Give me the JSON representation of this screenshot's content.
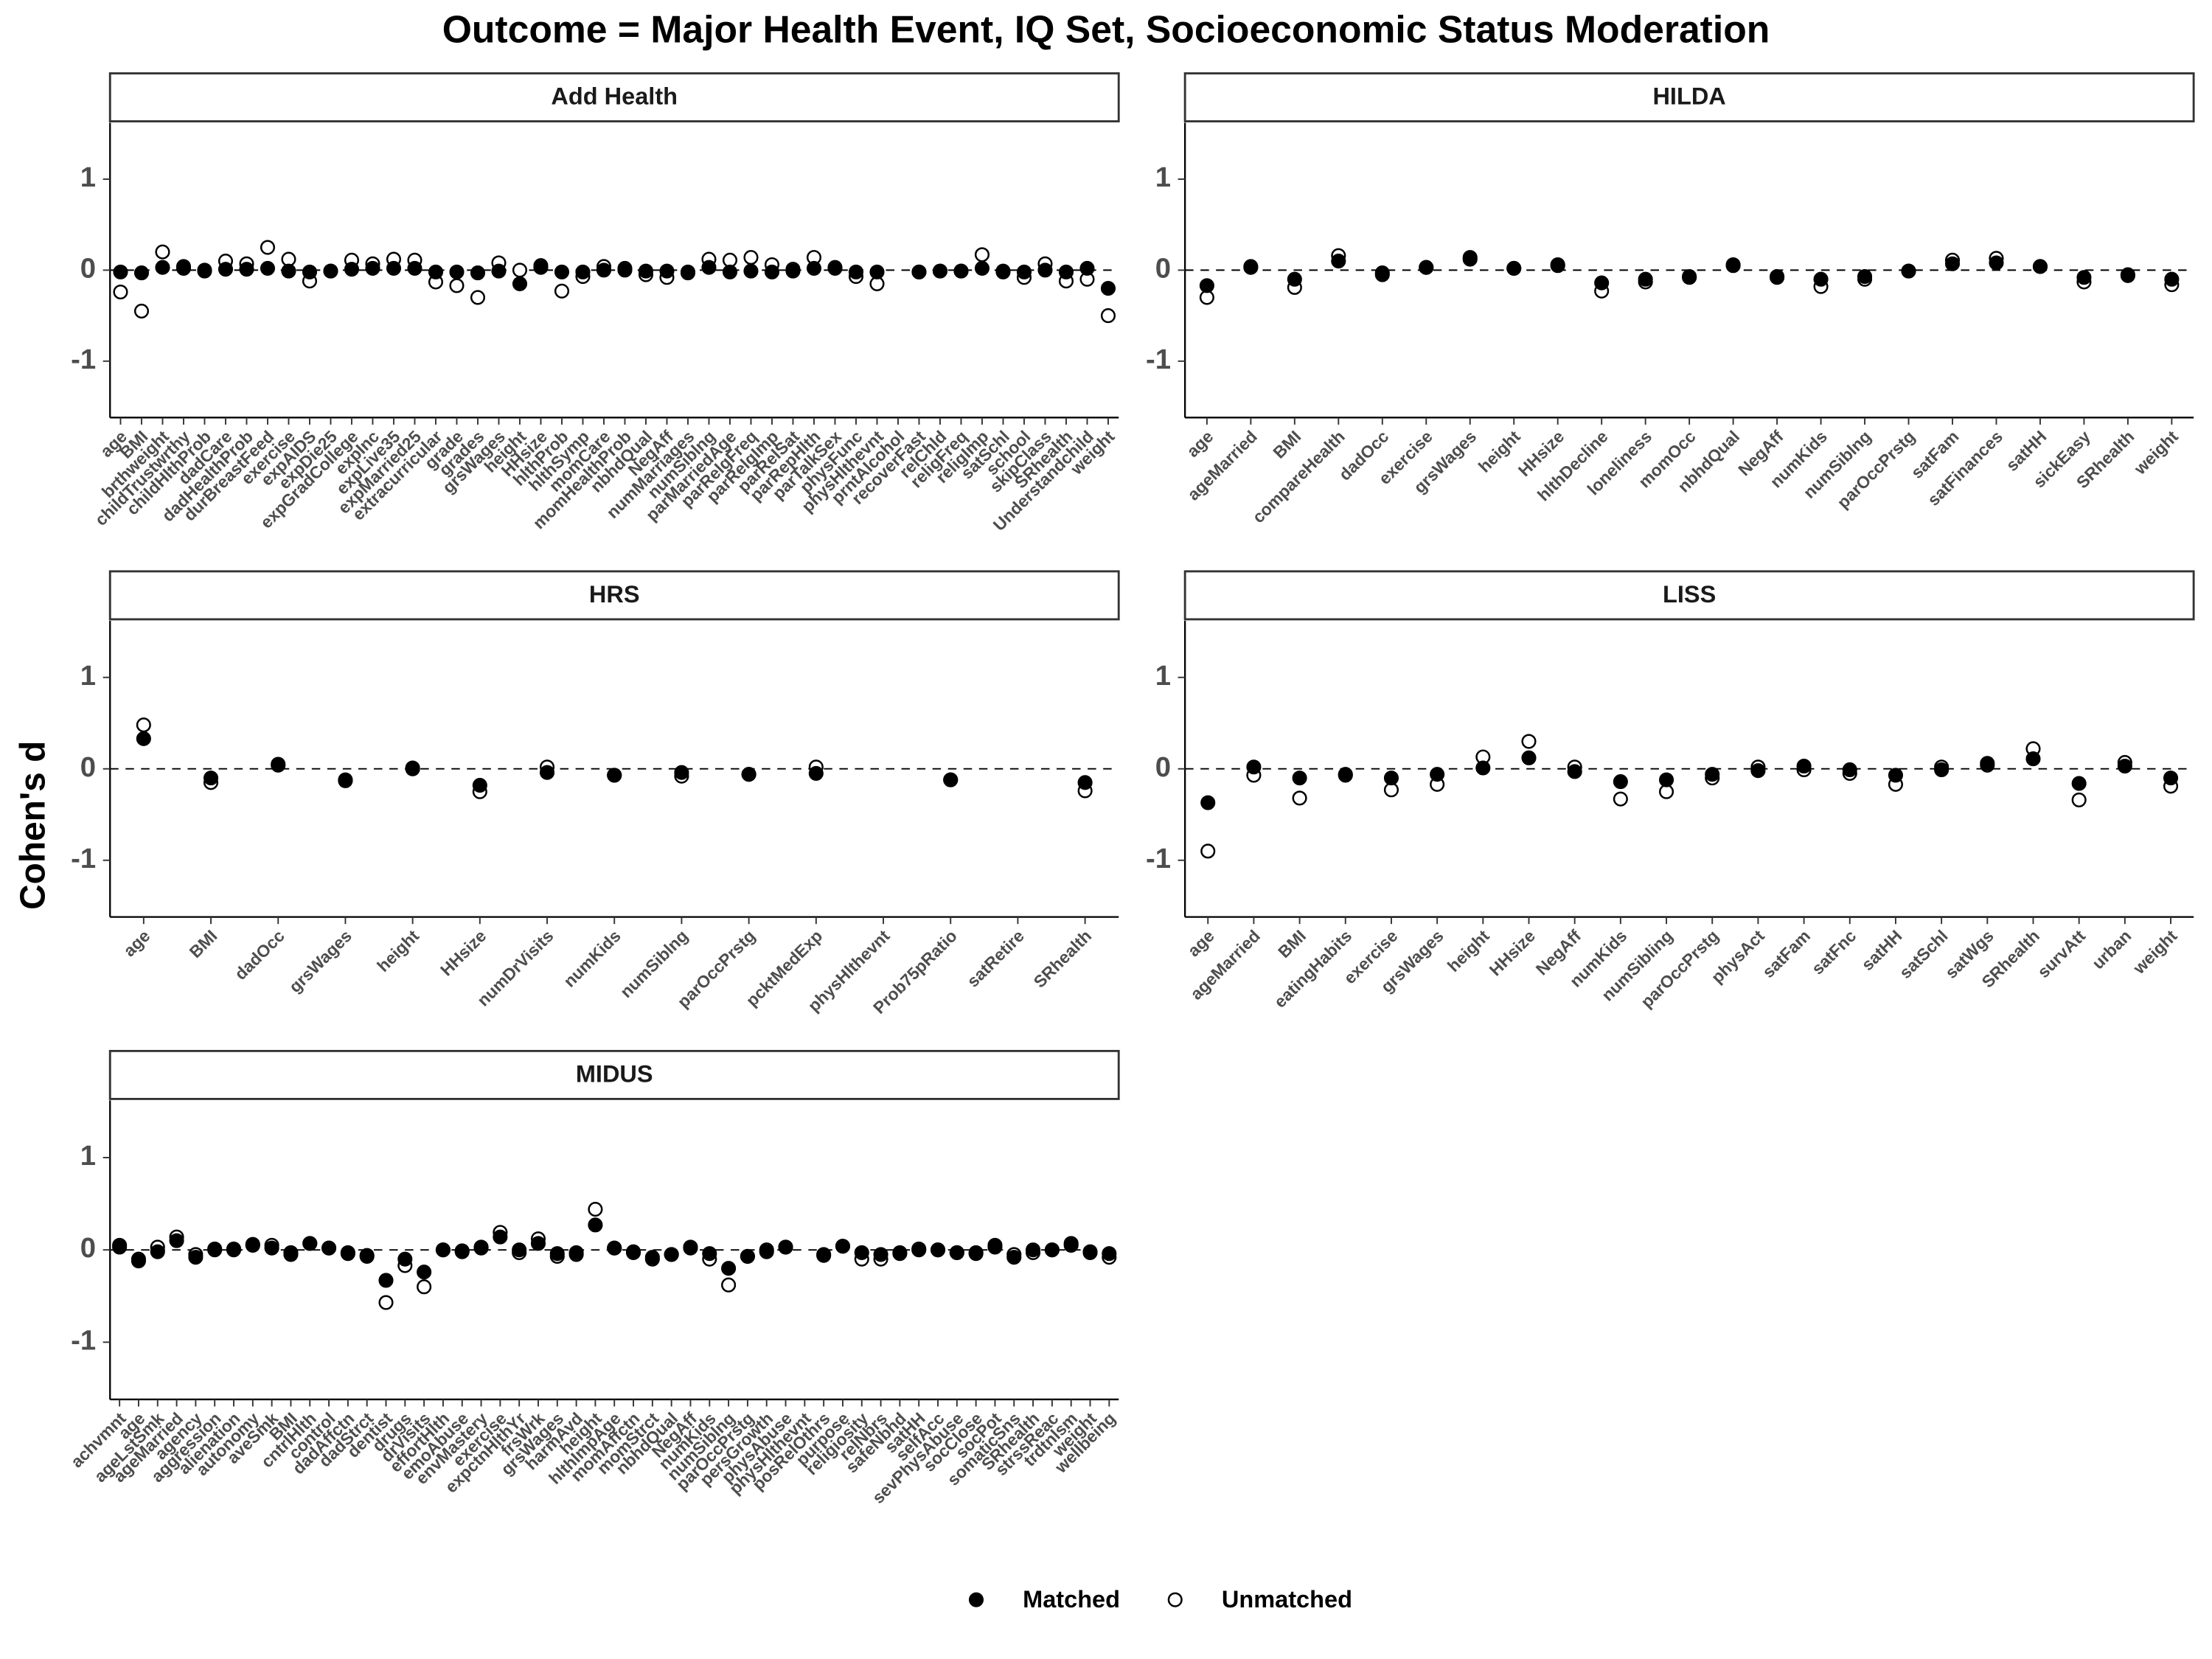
{
  "chart_data": {
    "type": "dot",
    "title": "Outcome = Major Health Event, IQ Set, Socioeconomic Status Moderation",
    "y_label": "Cohen's d",
    "legend": [
      {
        "name": "Matched",
        "color": "#000000",
        "fill": "#000000"
      },
      {
        "name": "Unmatched",
        "color": "#000000",
        "fill": "#ffffff"
      }
    ],
    "ylim": [
      -1.62,
      1.62
    ],
    "yticks": [
      1,
      0,
      -1
    ],
    "panels": [
      {
        "title": "Add Health",
        "categories": [
          "age",
          "BMI",
          "brthweight",
          "childTrustwrthy",
          "childHlthProb",
          "dadCare",
          "dadHealthProb",
          "durBreastFeed",
          "exercise",
          "expAIDS",
          "expDie25",
          "expGradCollege",
          "expInc",
          "expLive35",
          "expMarried25",
          "extracurricular",
          "grade",
          "grades",
          "grsWages",
          "height",
          "HHsize",
          "hlthProb",
          "hlthSymp",
          "momCare",
          "momHealthProb",
          "nbhdQual",
          "NegAff",
          "numMarriages",
          "numSiblng",
          "parMarriedAge",
          "parRelgFreq",
          "parRelgImp",
          "parRelSat",
          "parRepHlth",
          "parTalkSex",
          "physFunc",
          "physHlthevnt",
          "prntAlcohol",
          "recoverFast",
          "relChld",
          "religFreq",
          "religImp",
          "satSchl",
          "school",
          "skipClass",
          "SRhealth",
          "Understandchild",
          "weight"
        ],
        "series": [
          {
            "values": [
              -0.02,
              -0.03,
              0.03,
              0.02,
              -0.01,
              0.01,
              0.01,
              0.02,
              -0.01,
              -0.02,
              -0.01,
              0.01,
              0.02,
              0.02,
              0.02,
              -0.02,
              -0.02,
              -0.03,
              -0.01,
              -0.15,
              0.03,
              -0.02,
              -0.02,
              0.0,
              0.0,
              -0.01,
              -0.01,
              -0.02,
              0.03,
              -0.02,
              -0.01,
              -0.02,
              -0.01,
              0.02,
              0.03,
              -0.02,
              -0.02,
              null,
              -0.02,
              -0.01,
              -0.01,
              0.02,
              -0.02,
              -0.02,
              0.0,
              -0.02,
              0.02,
              -0.2
            ]
          },
          {
            "values": [
              -0.24,
              -0.45,
              0.2,
              0.04,
              0.0,
              0.1,
              0.07,
              0.25,
              0.12,
              -0.12,
              -0.01,
              0.11,
              0.07,
              0.12,
              0.11,
              -0.13,
              -0.17,
              -0.3,
              0.08,
              0.0,
              0.05,
              -0.23,
              -0.07,
              0.04,
              0.02,
              -0.05,
              -0.08,
              -0.03,
              0.12,
              0.11,
              0.14,
              0.06,
              0.01,
              0.14,
              0.02,
              -0.07,
              -0.15,
              null,
              -0.02,
              -0.01,
              -0.01,
              0.17,
              -0.01,
              -0.08,
              0.07,
              -0.12,
              -0.1,
              -0.5
            ]
          }
        ]
      },
      {
        "title": "HILDA",
        "categories": [
          "age",
          "ageMarried",
          "BMI",
          "compareHealth",
          "dadOcc",
          "exercise",
          "grsWages",
          "height",
          "HHsize",
          "hlthDecline",
          "loneliness",
          "momOcc",
          "nbhdQual",
          "NegAff",
          "numKids",
          "numSiblng",
          "parOccPrstg",
          "satFam",
          "satFinances",
          "satHH",
          "sickEasy",
          "SRhealth",
          "weight"
        ],
        "series": [
          {
            "values": [
              -0.17,
              0.03,
              -0.1,
              0.1,
              -0.03,
              0.03,
              0.12,
              0.02,
              0.05,
              -0.14,
              -0.1,
              -0.07,
              0.05,
              -0.07,
              -0.1,
              -0.07,
              -0.01,
              0.07,
              0.08,
              0.04,
              -0.08,
              -0.05,
              -0.1
            ]
          },
          {
            "values": [
              -0.3,
              0.04,
              -0.19,
              0.16,
              -0.05,
              0.03,
              0.14,
              0.02,
              0.06,
              -0.23,
              -0.13,
              -0.08,
              0.06,
              -0.08,
              -0.18,
              -0.1,
              -0.01,
              0.11,
              0.13,
              0.04,
              -0.13,
              -0.06,
              -0.16
            ]
          }
        ]
      },
      {
        "title": "HRS",
        "categories": [
          "age",
          "BMI",
          "dadOcc",
          "grsWages",
          "height",
          "HHsize",
          "numDrVisits",
          "numKids",
          "numSiblng",
          "parOccPrstg",
          "pcktMedExp",
          "physHlthevnt",
          "Prob75pRatio",
          "satRetire",
          "SRhealth"
        ],
        "series": [
          {
            "values": [
              0.33,
              -0.1,
              0.05,
              -0.12,
              0.01,
              -0.18,
              -0.04,
              -0.07,
              -0.04,
              -0.06,
              -0.05,
              null,
              -0.12,
              null,
              -0.15
            ]
          },
          {
            "values": [
              0.48,
              -0.15,
              0.04,
              -0.13,
              0.0,
              -0.25,
              0.02,
              -0.07,
              -0.08,
              -0.06,
              0.02,
              null,
              -0.12,
              null,
              -0.24
            ]
          }
        ]
      },
      {
        "title": "LISS",
        "categories": [
          "age",
          "ageMarried",
          "BMI",
          "eatingHabits",
          "exercise",
          "grsWages",
          "height",
          "HHsize",
          "NegAff",
          "numKids",
          "numSibling",
          "parOccPrstg",
          "physAct",
          "satFam",
          "satFnc",
          "satHH",
          "satSchl",
          "satWgs",
          "SRhealth",
          "survAtt",
          "urban",
          "weight"
        ],
        "series": [
          {
            "values": [
              -0.37,
              0.02,
              -0.1,
              -0.06,
              -0.1,
              -0.06,
              0.01,
              0.12,
              -0.03,
              -0.14,
              -0.12,
              -0.06,
              -0.02,
              0.03,
              -0.01,
              -0.07,
              -0.01,
              0.06,
              0.11,
              -0.16,
              0.03,
              -0.1
            ]
          },
          {
            "values": [
              -0.9,
              -0.07,
              -0.32,
              -0.07,
              -0.23,
              -0.17,
              0.13,
              0.3,
              0.02,
              -0.33,
              -0.25,
              -0.1,
              0.02,
              -0.01,
              -0.05,
              -0.17,
              0.02,
              0.04,
              0.22,
              -0.34,
              0.07,
              -0.19
            ]
          }
        ]
      },
      {
        "title": "MIDUS",
        "categories": [
          "achvmnt",
          "age",
          "ageLstSmk",
          "ageMarried",
          "agency",
          "aggression",
          "alienation",
          "autonomy",
          "aveSmk",
          "BMI",
          "cntrlHlth",
          "control",
          "dadAffctn",
          "dadStrct",
          "dentist",
          "drugs",
          "drVisits",
          "effortHlth",
          "emoAbuse",
          "envMastery",
          "exercise",
          "expctnHlthYr",
          "frsWrk",
          "grsWages",
          "harmAvd",
          "height",
          "hlthImpAge",
          "momAffctn",
          "momStrct",
          "nbhdQual",
          "NegAff",
          "numKids",
          "numSiblng",
          "parOccPrstg",
          "persGrowth",
          "physAbuse",
          "physHlthevnt",
          "posRelOthrs",
          "purpose",
          "religiosity",
          "relNbrs",
          "safeNbhd",
          "satHH",
          "selfAcc",
          "sevPhysAbuse",
          "socClose",
          "socPot",
          "somaticSns",
          "SRhealth",
          "strssReac",
          "trdtnlsm",
          "weight",
          "wellbeing"
        ],
        "series": [
          {
            "values": [
              0.03,
              -0.12,
              -0.02,
              0.1,
              -0.08,
              0.0,
              0.0,
              0.06,
              0.02,
              -0.05,
              0.07,
              0.02,
              -0.04,
              -0.07,
              -0.33,
              -0.1,
              -0.24,
              0.0,
              -0.02,
              0.03,
              0.14,
              0.0,
              0.07,
              -0.04,
              -0.03,
              0.27,
              0.02,
              -0.02,
              -0.08,
              -0.05,
              0.03,
              -0.04,
              -0.2,
              -0.07,
              -0.02,
              0.03,
              null,
              -0.06,
              0.04,
              -0.03,
              -0.05,
              -0.03,
              0.01,
              0.0,
              -0.03,
              -0.04,
              0.03,
              -0.08,
              0.0,
              0.0,
              0.05,
              -0.02,
              -0.04
            ]
          },
          {
            "values": [
              0.05,
              -0.1,
              0.03,
              0.14,
              -0.05,
              0.01,
              0.01,
              0.05,
              0.05,
              -0.03,
              0.07,
              0.02,
              -0.03,
              -0.06,
              -0.57,
              -0.17,
              -0.4,
              0.0,
              -0.01,
              0.02,
              0.19,
              -0.03,
              0.12,
              -0.07,
              -0.05,
              0.44,
              0.02,
              -0.03,
              -0.1,
              -0.05,
              0.02,
              -0.1,
              -0.38,
              -0.07,
              0.0,
              0.03,
              null,
              -0.05,
              0.04,
              -0.1,
              -0.1,
              -0.04,
              0.0,
              0.0,
              -0.03,
              -0.03,
              0.05,
              -0.05,
              -0.03,
              0.0,
              0.07,
              -0.03,
              -0.08
            ]
          }
        ]
      }
    ]
  }
}
